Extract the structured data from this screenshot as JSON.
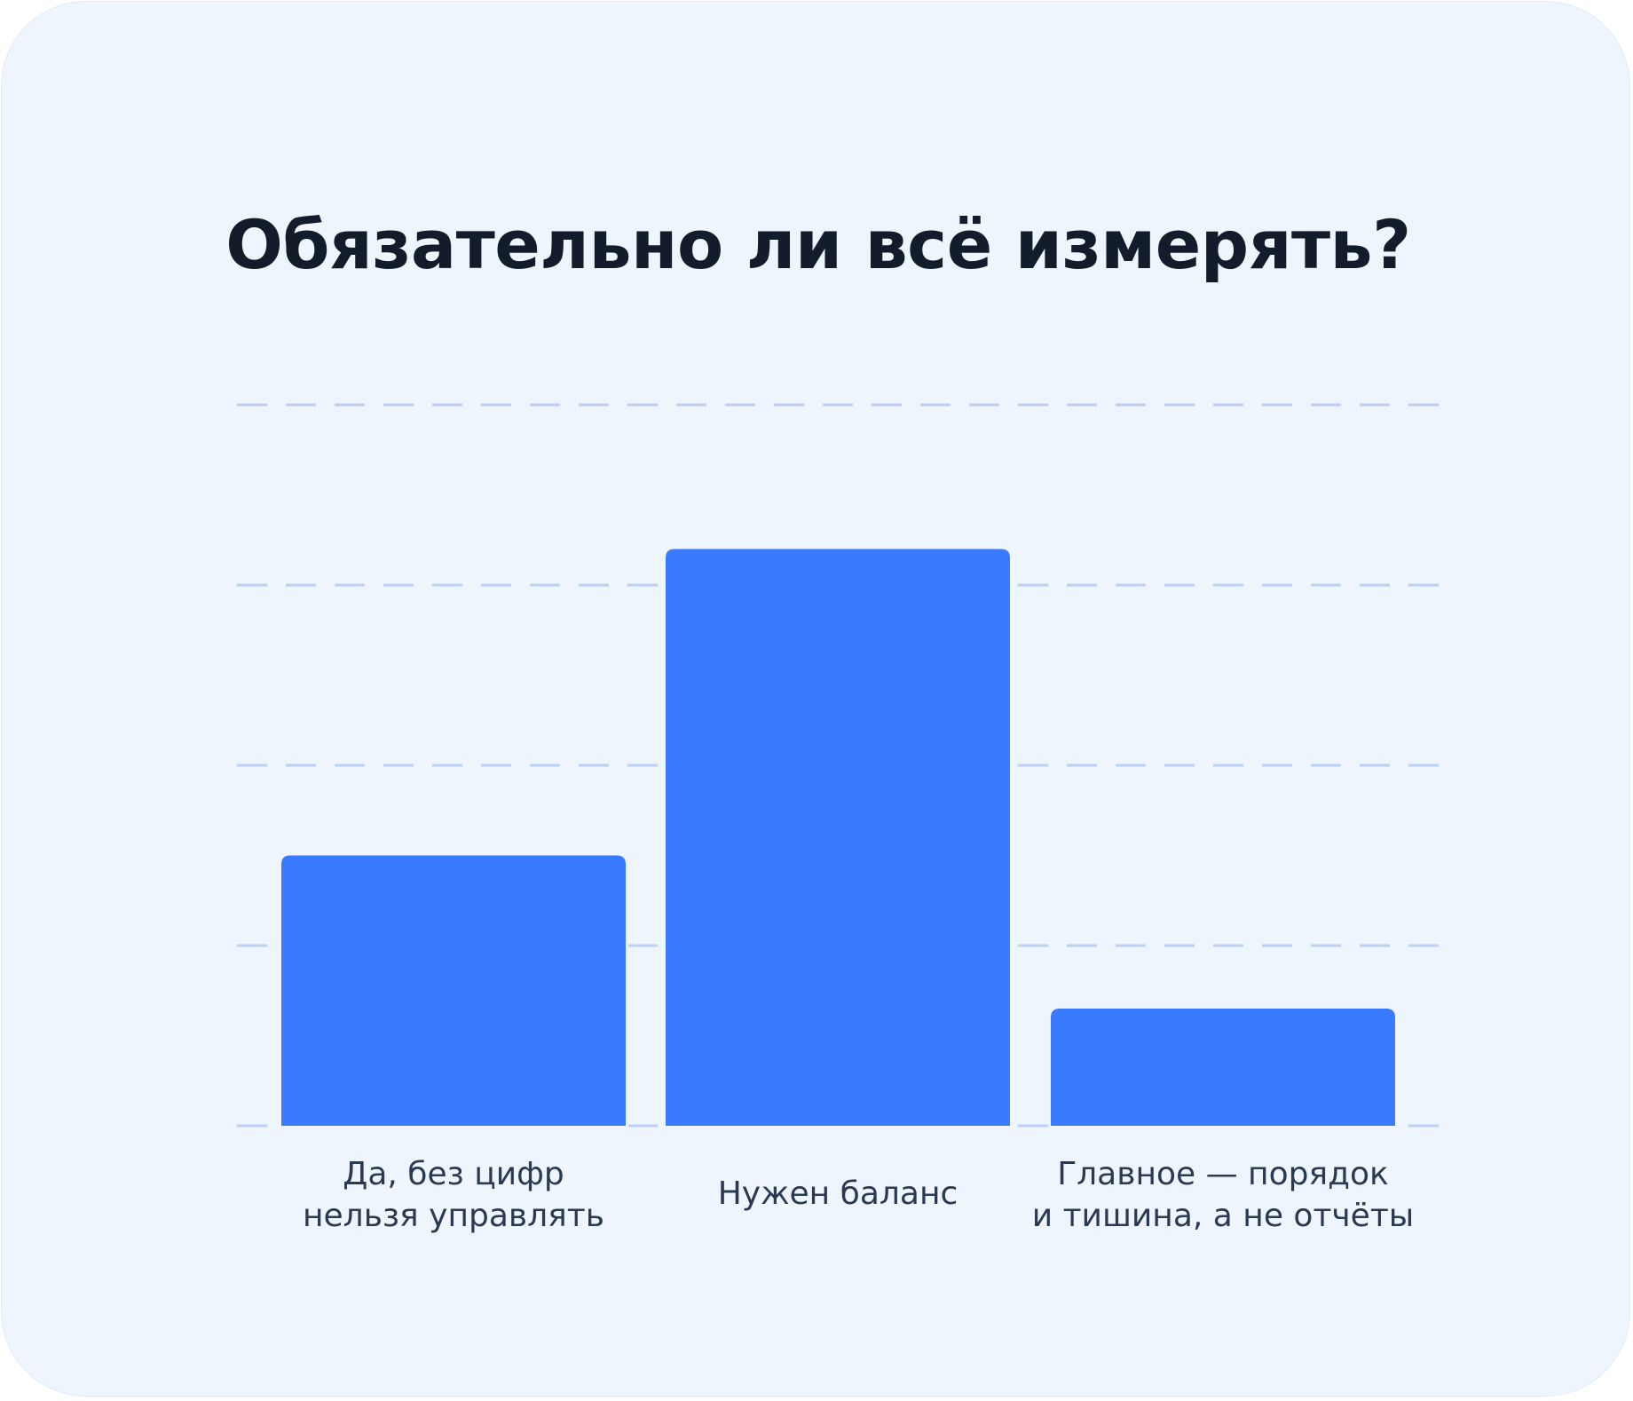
{
  "chart_data": {
    "type": "bar",
    "title": "Обязательно ли всё измерять?",
    "xlabel": "",
    "ylabel": "",
    "categories": [
      "Да, без цифр\nнельзя управлять",
      "Нужен баланс",
      "Главное — порядок\nи тишина, а не отчёты"
    ],
    "values": [
      30,
      64,
      13
    ],
    "ylim": [
      0,
      80
    ],
    "grid": true,
    "bar_color": "#3a7aff",
    "grid_color": "#bcd0f6"
  }
}
